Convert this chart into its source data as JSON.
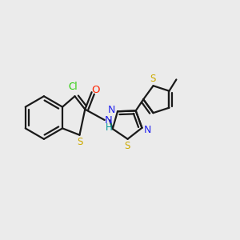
{
  "bg_color": "#ebebeb",
  "bond_color": "#1a1a1a",
  "bond_width": 1.6,
  "figsize": [
    3.0,
    3.0
  ],
  "dpi": 100,
  "colors": {
    "Cl": "#22cc00",
    "S": "#ccaa00",
    "O": "#ff2200",
    "N": "#2222ee",
    "H": "#009999",
    "C": "#1a1a1a",
    "methyl": "#1a1a1a"
  }
}
